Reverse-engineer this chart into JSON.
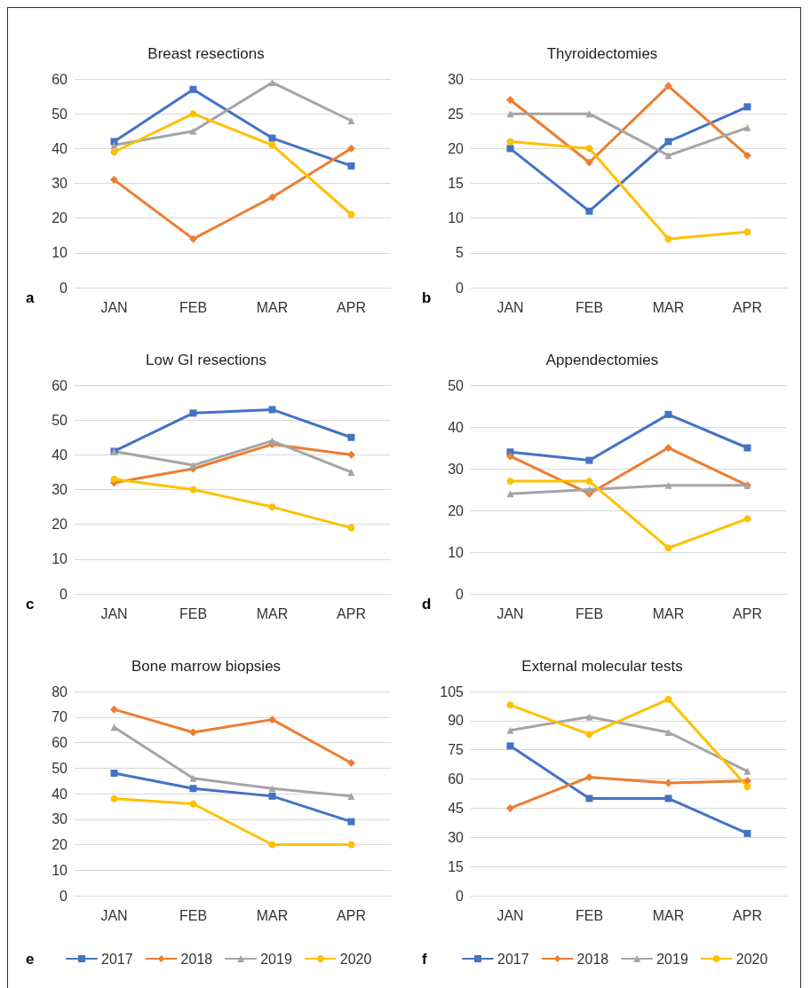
{
  "chart_data": [
    {
      "type": "line",
      "title": "Breast resections",
      "categories": [
        "JAN",
        "FEB",
        "MAR",
        "APR"
      ],
      "ylim": [
        0,
        60
      ],
      "yticks": [
        0,
        10,
        20,
        30,
        40,
        50,
        60
      ],
      "grid": "y",
      "legend": false,
      "annotations": [
        "a"
      ],
      "series": [
        {
          "color": "#4472c4",
          "marker": "square",
          "values": [
            42,
            57,
            43,
            35
          ]
        },
        {
          "color": "#ed7d31",
          "marker": "diamond",
          "values": [
            31,
            14,
            26,
            40
          ]
        },
        {
          "color": "#a5a5a5",
          "marker": "triangle",
          "values": [
            41,
            45,
            59,
            48
          ]
        },
        {
          "color": "#ffc000",
          "marker": "circle",
          "values": [
            39,
            50,
            41,
            21
          ]
        }
      ]
    },
    {
      "type": "line",
      "title": "Thyroidectomies",
      "categories": [
        "JAN",
        "FEB",
        "MAR",
        "APR"
      ],
      "ylim": [
        0,
        30
      ],
      "yticks": [
        0,
        5,
        10,
        15,
        20,
        25,
        30
      ],
      "grid": "y",
      "legend": false,
      "annotations": [
        "b"
      ],
      "series": [
        {
          "color": "#4472c4",
          "marker": "square",
          "values": [
            20,
            11,
            21,
            26
          ]
        },
        {
          "color": "#ed7d31",
          "marker": "diamond",
          "values": [
            27,
            18,
            29,
            19
          ]
        },
        {
          "color": "#a5a5a5",
          "marker": "triangle",
          "values": [
            25,
            25,
            19,
            23
          ]
        },
        {
          "color": "#ffc000",
          "marker": "circle",
          "values": [
            21,
            20,
            7,
            8
          ]
        }
      ]
    },
    {
      "type": "line",
      "title": "Low GI resections",
      "categories": [
        "JAN",
        "FEB",
        "MAR",
        "APR"
      ],
      "ylim": [
        0,
        60
      ],
      "yticks": [
        0,
        10,
        20,
        30,
        40,
        50,
        60
      ],
      "grid": "y",
      "legend": false,
      "annotations": [
        "c"
      ],
      "series": [
        {
          "color": "#4472c4",
          "marker": "square",
          "values": [
            41,
            52,
            53,
            45
          ]
        },
        {
          "color": "#ed7d31",
          "marker": "diamond",
          "values": [
            32,
            36,
            43,
            40
          ]
        },
        {
          "color": "#a5a5a5",
          "marker": "triangle",
          "values": [
            41,
            37,
            44,
            35
          ]
        },
        {
          "color": "#ffc000",
          "marker": "circle",
          "values": [
            33,
            30,
            25,
            19
          ]
        }
      ]
    },
    {
      "type": "line",
      "title": "Appendectomies",
      "categories": [
        "JAN",
        "FEB",
        "MAR",
        "APR"
      ],
      "ylim": [
        0,
        50
      ],
      "yticks": [
        0,
        10,
        20,
        30,
        40,
        50
      ],
      "grid": "y",
      "legend": false,
      "annotations": [
        "d"
      ],
      "series": [
        {
          "color": "#4472c4",
          "marker": "square",
          "values": [
            34,
            32,
            43,
            35
          ]
        },
        {
          "color": "#ed7d31",
          "marker": "diamond",
          "values": [
            33,
            24,
            35,
            26
          ]
        },
        {
          "color": "#a5a5a5",
          "marker": "triangle",
          "values": [
            24,
            25,
            26,
            26
          ]
        },
        {
          "color": "#ffc000",
          "marker": "circle",
          "values": [
            27,
            27,
            11,
            18
          ]
        }
      ]
    },
    {
      "type": "line",
      "title": "Bone marrow biopsies",
      "categories": [
        "JAN",
        "FEB",
        "MAR",
        "APR"
      ],
      "ylim": [
        0,
        80
      ],
      "yticks": [
        0,
        10,
        20,
        30,
        40,
        50,
        60,
        70,
        80
      ],
      "grid": "y",
      "legend": "bottom",
      "annotations": [
        "e"
      ],
      "series": [
        {
          "name": "2017",
          "color": "#4472c4",
          "marker": "square",
          "values": [
            48,
            42,
            39,
            29
          ]
        },
        {
          "name": "2018",
          "color": "#ed7d31",
          "marker": "diamond",
          "values": [
            73,
            64,
            69,
            52
          ]
        },
        {
          "name": "2019",
          "color": "#a5a5a5",
          "marker": "triangle",
          "values": [
            66,
            46,
            42,
            39
          ]
        },
        {
          "name": "2020",
          "color": "#ffc000",
          "marker": "circle",
          "values": [
            38,
            36,
            20,
            20
          ]
        }
      ]
    },
    {
      "type": "line",
      "title": "External molecular tests",
      "categories": [
        "JAN",
        "FEB",
        "MAR",
        "APR"
      ],
      "ylim": [
        0,
        105
      ],
      "yticks": [
        0,
        15,
        30,
        45,
        60,
        75,
        90,
        105
      ],
      "grid": "y",
      "legend": "bottom",
      "annotations": [
        "f"
      ],
      "series": [
        {
          "name": "2017",
          "color": "#4472c4",
          "marker": "square",
          "values": [
            77,
            50,
            50,
            32
          ]
        },
        {
          "name": "2018",
          "color": "#ed7d31",
          "marker": "diamond",
          "values": [
            45,
            61,
            58,
            59
          ]
        },
        {
          "name": "2019",
          "color": "#a5a5a5",
          "marker": "triangle",
          "values": [
            85,
            92,
            84,
            64
          ]
        },
        {
          "name": "2020",
          "color": "#ffc000",
          "marker": "circle",
          "values": [
            98,
            83,
            101,
            56
          ]
        }
      ]
    }
  ]
}
